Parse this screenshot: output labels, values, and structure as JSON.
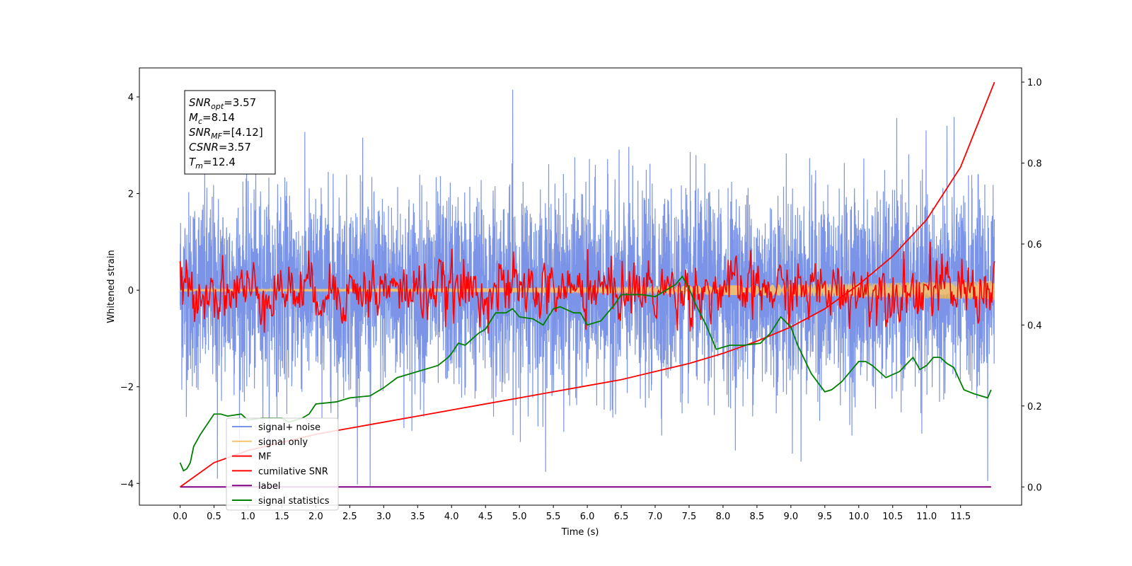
{
  "chart_data": {
    "type": "line",
    "title": "",
    "xlabel": "Time (s)",
    "ylabel": "Whitened strain",
    "xlim": [
      -0.6,
      12.4
    ],
    "ylim": [
      -4.45,
      4.6
    ],
    "y2lim": [
      -0.045,
      1.035
    ],
    "grid": false,
    "legend_position": "bottom-left",
    "x_ticks": [
      0.0,
      0.5,
      1.0,
      1.5,
      2.0,
      2.5,
      3.0,
      3.5,
      4.0,
      4.5,
      5.0,
      5.5,
      6.0,
      6.5,
      7.0,
      7.5,
      8.0,
      8.5,
      9.0,
      9.5,
      10.0,
      10.5,
      11.0,
      11.5
    ],
    "x_tick_labels": [
      "0.0",
      "0.5",
      "1.0",
      "1.5",
      "2.0",
      "2.5",
      "3.0",
      "3.5",
      "4.0",
      "4.5",
      "5.0",
      "5.5",
      "6.0",
      "6.5",
      "7.0",
      "7.5",
      "8.0",
      "8.5",
      "9.0",
      "9.5",
      "10.0",
      "10.5",
      "11.0",
      "11.5"
    ],
    "y_ticks": [
      -4,
      -2,
      0,
      2,
      4
    ],
    "y_tick_labels": [
      "−4",
      "−2",
      "0",
      "2",
      "4"
    ],
    "y2_ticks": [
      0.0,
      0.2,
      0.4,
      0.6,
      0.8,
      1.0
    ],
    "y2_tick_labels": [
      "0.0",
      "0.2",
      "0.4",
      "0.6",
      "0.8",
      "1.0"
    ],
    "annotation": {
      "lines": [
        {
          "base": "SNR",
          "sub": "opt",
          "value": "=3.57"
        },
        {
          "base": "M",
          "sub": "c",
          "value": "=8.14"
        },
        {
          "base": "SNR",
          "sub": "MF",
          "value": "=[4.12]"
        },
        {
          "base": "CSNR",
          "sub": "",
          "value": "=3.57"
        },
        {
          "base": "T",
          "sub": "m",
          "value": "=12.4"
        }
      ]
    },
    "series": [
      {
        "name": "signal+ noise",
        "color": "#7b94e8",
        "axis": "left",
        "kind": "noise",
        "x_range": [
          0.0,
          12.0
        ],
        "amplitude_std": 1.0,
        "peak_values": [
          {
            "x": 4.9,
            "y": 4.15
          },
          {
            "x": 11.3,
            "y": 3.4
          },
          {
            "x": 2.8,
            "y": -4.05
          },
          {
            "x": 9.15,
            "y": -3.55
          },
          {
            "x": 11.9,
            "y": -3.95
          },
          {
            "x": 0.55,
            "y": -3.9
          }
        ]
      },
      {
        "name": "signal only",
        "color": "#f5c26b",
        "axis": "left",
        "kind": "chirp",
        "x_range": [
          0.0,
          12.0
        ],
        "amplitude_start": 0.02,
        "amplitude_end": 0.2
      },
      {
        "name": "MF",
        "color": "#ff0000",
        "axis": "left",
        "kind": "noise",
        "x_range": [
          0.0,
          12.0
        ],
        "amplitude_std": 0.2,
        "peak_values": [
          {
            "x": 0.0,
            "y": 0.6
          },
          {
            "x": 6.0,
            "y": 0.85
          },
          {
            "x": 11.05,
            "y": 1.0
          },
          {
            "x": 12.0,
            "y": 0.6
          }
        ]
      },
      {
        "name": "cumilative SNR",
        "color": "#ff0000",
        "axis": "right",
        "kind": "line",
        "x": [
          0.0,
          0.5,
          1.0,
          1.5,
          2.0,
          2.5,
          3.0,
          3.5,
          4.0,
          4.5,
          5.0,
          5.5,
          6.0,
          6.5,
          7.0,
          7.5,
          8.0,
          8.5,
          9.0,
          9.5,
          10.0,
          10.5,
          11.0,
          11.5,
          12.0
        ],
        "values": [
          0.0,
          0.06,
          0.09,
          0.11,
          0.13,
          0.145,
          0.16,
          0.175,
          0.19,
          0.205,
          0.22,
          0.235,
          0.25,
          0.265,
          0.285,
          0.305,
          0.33,
          0.36,
          0.395,
          0.44,
          0.5,
          0.57,
          0.66,
          0.79,
          1.0
        ]
      },
      {
        "name": "label",
        "color": "#800080",
        "axis": "right",
        "kind": "line",
        "x": [
          0.0,
          11.95
        ],
        "values": [
          0.0,
          0.0
        ]
      },
      {
        "name": "signal statistics",
        "color": "#008000",
        "axis": "right",
        "kind": "line",
        "x": [
          0.0,
          0.05,
          0.1,
          0.15,
          0.2,
          0.3,
          0.5,
          0.6,
          0.7,
          0.9,
          1.0,
          1.2,
          1.4,
          1.5,
          1.6,
          1.8,
          1.9,
          2.0,
          2.3,
          2.5,
          2.8,
          3.0,
          3.2,
          3.5,
          3.7,
          3.8,
          3.95,
          4.0,
          4.1,
          4.2,
          4.4,
          4.5,
          4.65,
          4.8,
          4.9,
          5.0,
          5.2,
          5.35,
          5.5,
          5.6,
          5.8,
          5.9,
          6.0,
          6.2,
          6.4,
          6.5,
          6.8,
          7.0,
          7.3,
          7.4,
          7.5,
          7.6,
          7.75,
          7.9,
          8.1,
          8.3,
          8.55,
          8.7,
          8.85,
          9.0,
          9.1,
          9.3,
          9.5,
          9.6,
          9.75,
          9.9,
          10.0,
          10.1,
          10.2,
          10.4,
          10.6,
          10.8,
          10.9,
          11.0,
          11.1,
          11.2,
          11.3,
          11.4,
          11.55,
          11.7,
          11.8,
          11.9,
          11.95
        ],
        "values": [
          0.06,
          0.04,
          0.045,
          0.06,
          0.1,
          0.13,
          0.18,
          0.18,
          0.175,
          0.18,
          0.165,
          0.17,
          0.17,
          0.17,
          0.16,
          0.17,
          0.18,
          0.205,
          0.21,
          0.22,
          0.225,
          0.245,
          0.27,
          0.285,
          0.295,
          0.3,
          0.32,
          0.33,
          0.355,
          0.35,
          0.38,
          0.39,
          0.43,
          0.43,
          0.44,
          0.42,
          0.415,
          0.4,
          0.44,
          0.445,
          0.43,
          0.43,
          0.4,
          0.41,
          0.45,
          0.475,
          0.475,
          0.47,
          0.5,
          0.52,
          0.49,
          0.45,
          0.4,
          0.34,
          0.35,
          0.35,
          0.355,
          0.38,
          0.42,
          0.395,
          0.35,
          0.28,
          0.235,
          0.24,
          0.26,
          0.29,
          0.31,
          0.31,
          0.3,
          0.27,
          0.285,
          0.32,
          0.29,
          0.3,
          0.32,
          0.32,
          0.305,
          0.295,
          0.24,
          0.23,
          0.225,
          0.22,
          0.24
        ]
      }
    ]
  }
}
